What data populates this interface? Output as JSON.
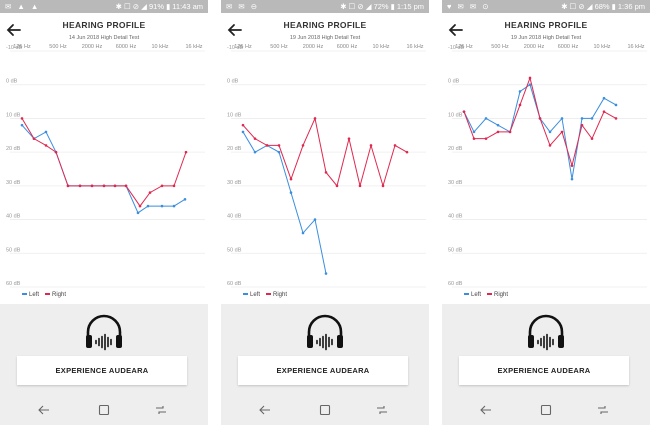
{
  "screens": [
    {
      "status": {
        "left_icons": "✉ ▲ ▲",
        "right": "✱ ☐ ⊘ ◢ 91% ▮ 11:43 am"
      },
      "header": {
        "title": "HEARING PROFILE",
        "subtitle": "14 Jun 2018 High Detail Test"
      },
      "freq_labels": [
        "125 Hz",
        "500 Hz",
        "2000 Hz",
        "6000 Hz",
        "10 kHz",
        "16 kHz"
      ],
      "chart_data": {
        "type": "line",
        "ylabel_ticks": [
          "-10 dB",
          "0 dB",
          "10 dB",
          "20 dB",
          "30 dB",
          "40 dB",
          "50 dB",
          "60 dB"
        ],
        "ylim": [
          -10,
          60
        ],
        "series": [
          {
            "name": "Left",
            "color": "#3a8ee0",
            "points": [
              [
                22,
                12
              ],
              [
                34,
                16
              ],
              [
                46,
                14
              ],
              [
                56,
                20
              ],
              [
                68,
                30
              ],
              [
                80,
                30
              ],
              [
                92,
                30
              ],
              [
                104,
                30
              ],
              [
                115,
                30
              ],
              [
                126,
                30
              ],
              [
                138,
                38
              ],
              [
                148,
                36
              ],
              [
                162,
                36
              ],
              [
                174,
                36
              ],
              [
                185,
                34
              ]
            ]
          },
          {
            "name": "Right",
            "color": "#e0284f",
            "points": [
              [
                22,
                10
              ],
              [
                34,
                16
              ],
              [
                46,
                18
              ],
              [
                56,
                20
              ],
              [
                68,
                30
              ],
              [
                80,
                30
              ],
              [
                92,
                30
              ],
              [
                104,
                30
              ],
              [
                115,
                30
              ],
              [
                126,
                30
              ],
              [
                140,
                36
              ],
              [
                150,
                32
              ],
              [
                162,
                30
              ],
              [
                174,
                30
              ],
              [
                186,
                20
              ]
            ]
          }
        ]
      },
      "legend": {
        "left": "Left",
        "right": "Right"
      },
      "button": "EXPERIENCE AUDEARA"
    },
    {
      "status": {
        "left_icons": "✉ ✉ ⊖",
        "right": "✱ ☐ ⊘ ◢ 72% ▮ 1:15 pm"
      },
      "header": {
        "title": "HEARING PROFILE",
        "subtitle": "19 Jun 2018 High Detail Test"
      },
      "freq_labels": [
        "125 Hz",
        "500 Hz",
        "2000 Hz",
        "6000 Hz",
        "10 kHz",
        "16 kHz"
      ],
      "chart_data": {
        "type": "line",
        "ylabel_ticks": [
          "-10 dB",
          "0 dB",
          "10 dB",
          "20 dB",
          "30 dB",
          "40 dB",
          "50 dB",
          "60 dB"
        ],
        "ylim": [
          -10,
          60
        ],
        "series": [
          {
            "name": "Left",
            "color": "#3a8ee0",
            "points": [
              [
                22,
                14
              ],
              [
                34,
                20
              ],
              [
                46,
                18
              ],
              [
                58,
                20
              ],
              [
                70,
                32
              ],
              [
                82,
                44
              ],
              [
                94,
                40
              ],
              [
                105,
                56
              ]
            ]
          },
          {
            "name": "Right",
            "color": "#e0284f",
            "points": [
              [
                22,
                12
              ],
              [
                34,
                16
              ],
              [
                46,
                18
              ],
              [
                58,
                18
              ],
              [
                70,
                28
              ],
              [
                82,
                18
              ],
              [
                94,
                10
              ],
              [
                105,
                26
              ],
              [
                116,
                30
              ],
              [
                128,
                16
              ],
              [
                139,
                30
              ],
              [
                150,
                18
              ],
              [
                162,
                30
              ],
              [
                174,
                18
              ],
              [
                186,
                20
              ]
            ]
          }
        ]
      },
      "legend": {
        "left": "Left",
        "right": "Right"
      },
      "button": "EXPERIENCE AUDEARA"
    },
    {
      "status": {
        "left_icons": "♥ ✉ ✉ ⊙",
        "right": "✱ ☐ ⊘ ◢ 68% ▮ 1:36 pm"
      },
      "header": {
        "title": "HEARING PROFILE",
        "subtitle": "19 Jun 2018 High Detail Test"
      },
      "freq_labels": [
        "125 Hz",
        "500 Hz",
        "2000 Hz",
        "6000 Hz",
        "10 kHz",
        "16 kHz"
      ],
      "chart_data": {
        "type": "line",
        "ylabel_ticks": [
          "-10 dB",
          "0 dB",
          "10 dB",
          "20 dB",
          "30 dB",
          "40 dB",
          "50 dB",
          "60 dB"
        ],
        "ylim": [
          -10,
          60
        ],
        "series": [
          {
            "name": "Left",
            "color": "#3a8ee0",
            "points": [
              [
                22,
                8
              ],
              [
                32,
                14
              ],
              [
                44,
                10
              ],
              [
                56,
                12
              ],
              [
                68,
                14
              ],
              [
                78,
                2
              ],
              [
                88,
                0
              ],
              [
                98,
                10
              ],
              [
                108,
                14
              ],
              [
                120,
                10
              ],
              [
                130,
                28
              ],
              [
                140,
                10
              ],
              [
                150,
                10
              ],
              [
                162,
                4
              ],
              [
                174,
                6
              ]
            ]
          },
          {
            "name": "Right",
            "color": "#e0284f",
            "points": [
              [
                22,
                8
              ],
              [
                32,
                16
              ],
              [
                44,
                16
              ],
              [
                56,
                14
              ],
              [
                68,
                14
              ],
              [
                78,
                6
              ],
              [
                88,
                -2
              ],
              [
                98,
                10
              ],
              [
                108,
                18
              ],
              [
                120,
                14
              ],
              [
                130,
                24
              ],
              [
                140,
                12
              ],
              [
                150,
                16
              ],
              [
                162,
                8
              ],
              [
                174,
                10
              ]
            ]
          }
        ]
      },
      "legend": {
        "left": "Left",
        "right": "Right"
      },
      "button": "EXPERIENCE AUDEARA"
    }
  ]
}
